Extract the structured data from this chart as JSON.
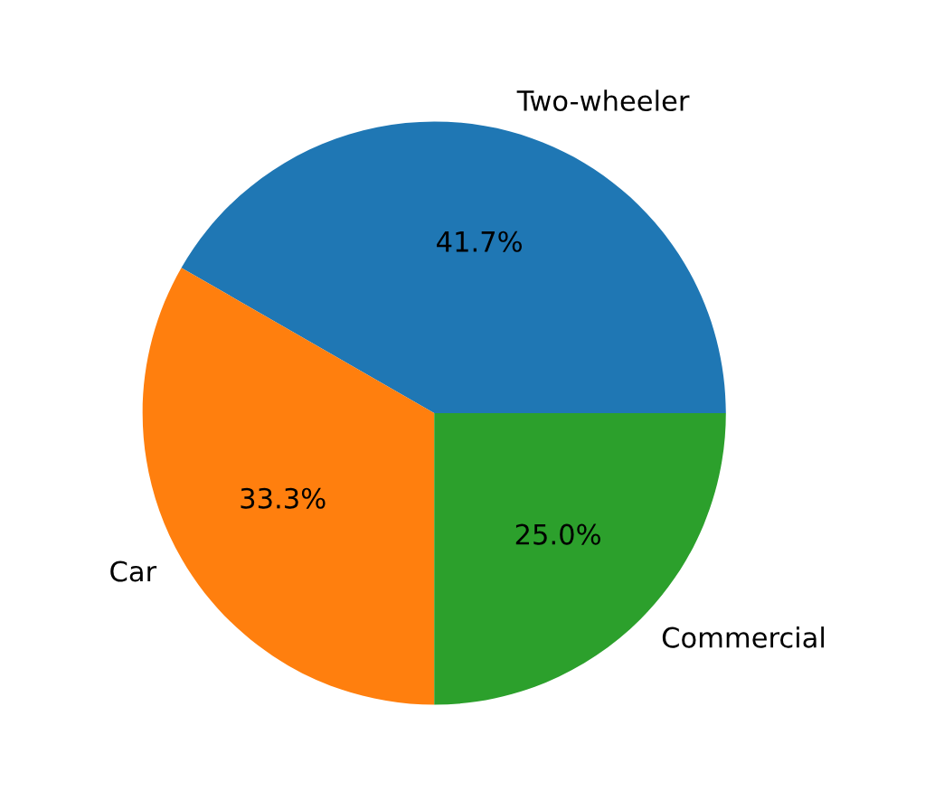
{
  "chart_data": {
    "type": "pie",
    "categories": [
      "Two-wheeler",
      "Car",
      "Commercial"
    ],
    "values": [
      41.7,
      33.3,
      25.0
    ],
    "colors": [
      "#1f77b4",
      "#ff7f0e",
      "#2ca02c"
    ],
    "value_labels": [
      "41.7%",
      "33.3%",
      "25.0%"
    ]
  }
}
